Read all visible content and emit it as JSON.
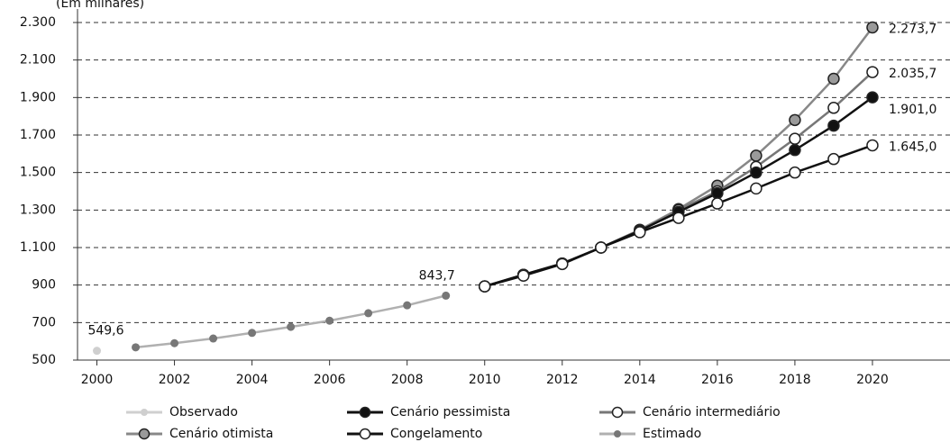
{
  "chart_data": {
    "type": "line",
    "subtitle": "(Em milhares)",
    "xlim": [
      1999.5,
      2022
    ],
    "xticks": [
      2000,
      2002,
      2004,
      2006,
      2008,
      2010,
      2012,
      2014,
      2016,
      2018,
      2020
    ],
    "ylim": [
      500,
      2300
    ],
    "yticks": [
      500,
      700,
      900,
      {
        "value": 1100,
        "label": "1.100"
      },
      {
        "value": 1300,
        "label": "1.300"
      },
      {
        "value": 1500,
        "label": "1.500"
      },
      {
        "value": 1700,
        "label": "1.700"
      },
      {
        "value": 1900,
        "label": "1.900"
      },
      {
        "value": 2100,
        "label": "2.100"
      },
      {
        "value": 2300,
        "label": "2.300"
      }
    ],
    "grid": true,
    "series": [
      {
        "name": "Observado",
        "color": "#cfcfcf",
        "marker_color": "#cfcfcf",
        "x": [
          2000
        ],
        "values": [
          549.6
        ],
        "value_labels": [
          "549,6"
        ]
      },
      {
        "name": "Cenário pessimista",
        "color": "#111111",
        "marker_color": "#111111",
        "x": [
          2010,
          2011,
          2012,
          2013,
          2014,
          2015,
          2016,
          2017,
          2018,
          2019,
          2020
        ],
        "values": [
          893,
          955,
          1015,
          1100,
          1190,
          1290,
          1390,
          1500,
          1620,
          1750,
          1901.0
        ],
        "value_labels": [
          null,
          null,
          null,
          null,
          null,
          null,
          null,
          null,
          null,
          null,
          "1.901,0"
        ]
      },
      {
        "name": "Cenário  intermediário",
        "color": "#777777",
        "marker_color": "#ffffff",
        "x": [
          2010,
          2011,
          2012,
          2013,
          2014,
          2015,
          2016,
          2017,
          2018,
          2019,
          2020
        ],
        "values": [
          893,
          955,
          1015,
          1100,
          1190,
          1300,
          1400,
          1530,
          1680,
          1845,
          2035.7
        ],
        "value_labels": [
          null,
          null,
          null,
          null,
          null,
          null,
          null,
          null,
          null,
          null,
          "2.035,7"
        ]
      },
      {
        "name": "Cenário otimista",
        "color": "#888888",
        "marker_color": "#9a9a9a",
        "x": [
          2010,
          2011,
          2012,
          2013,
          2014,
          2015,
          2016,
          2017,
          2018,
          2019,
          2020
        ],
        "values": [
          893,
          955,
          1015,
          1100,
          1195,
          1305,
          1430,
          1590,
          1780,
          2000,
          2273.7
        ],
        "value_labels": [
          null,
          null,
          null,
          null,
          null,
          null,
          null,
          null,
          null,
          null,
          "2.273,7"
        ]
      },
      {
        "name": "Congelamento",
        "color": "#111111",
        "marker_color": "#ffffff",
        "x": [
          2010,
          2011,
          2012,
          2013,
          2014,
          2015,
          2016,
          2017,
          2018,
          2019,
          2020
        ],
        "values": [
          893,
          950,
          1012,
          1100,
          1182,
          1258,
          1335,
          1415,
          1500,
          1572,
          1645.0
        ],
        "value_labels": [
          null,
          null,
          null,
          null,
          null,
          null,
          null,
          null,
          null,
          null,
          "1.645,0"
        ]
      },
      {
        "name": "Estimado",
        "color": "#b0b0b0",
        "marker_color": "#777777",
        "x": [
          2001,
          2002,
          2003,
          2004,
          2005,
          2006,
          2007,
          2008,
          2009
        ],
        "values": [
          568,
          590,
          615,
          645,
          677,
          710,
          750,
          792,
          843.7
        ],
        "value_labels": [
          null,
          null,
          null,
          null,
          null,
          null,
          null,
          null,
          "843,7"
        ]
      }
    ]
  }
}
